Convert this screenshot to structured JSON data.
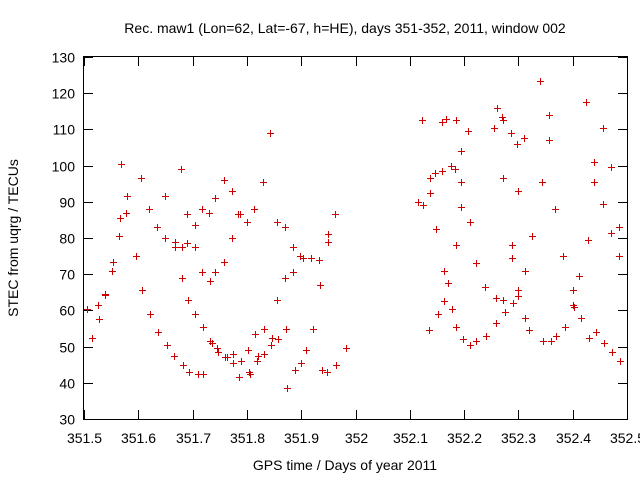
{
  "chart_data": {
    "type": "scatter",
    "title": "Rec. maw1 (Lon=62, Lat=-67, h=HE), days 351-352, 2011, window 002",
    "xlabel": "GPS time / Days of year 2011",
    "ylabel": "STEC from uqrg / TECUs",
    "xlim": [
      351.5,
      352.5
    ],
    "ylim": [
      30,
      130
    ],
    "grid": false,
    "xticks": [
      351.5,
      351.6,
      351.7,
      351.8,
      351.9,
      352.0,
      352.1,
      352.2,
      352.3,
      352.4,
      352.5
    ],
    "xtick_labels": [
      "351.5",
      "351.6",
      "351.7",
      "351.8",
      "351.9",
      "352",
      "352.1",
      "352.2",
      "352.3",
      "352.4",
      "352.5"
    ],
    "yticks": [
      30,
      40,
      50,
      60,
      70,
      80,
      90,
      100,
      110,
      120,
      130
    ],
    "ytick_labels": [
      "30",
      "40",
      "50",
      "60",
      "70",
      "80",
      "90",
      "100",
      "110",
      "120",
      "130"
    ],
    "marker": "+",
    "marker_color": "#cc0000",
    "series": [
      {
        "name": "STEC",
        "points": [
          [
            351.506,
            60.5
          ],
          [
            351.515,
            52.5
          ],
          [
            351.525,
            61.5
          ],
          [
            351.528,
            57.5
          ],
          [
            351.538,
            64.5
          ],
          [
            351.538,
            64.2
          ],
          [
            351.552,
            71
          ],
          [
            351.553,
            73.5
          ],
          [
            351.565,
            80.5
          ],
          [
            351.566,
            85.5
          ],
          [
            351.568,
            100.5
          ],
          [
            351.578,
            87
          ],
          [
            351.58,
            91.5
          ],
          [
            351.595,
            75
          ],
          [
            351.605,
            96.5
          ],
          [
            351.607,
            65.5
          ],
          [
            351.62,
            88
          ],
          [
            351.622,
            59
          ],
          [
            351.635,
            83
          ],
          [
            351.636,
            54
          ],
          [
            351.65,
            91.5
          ],
          [
            351.65,
            80
          ],
          [
            351.652,
            50.5
          ],
          [
            351.665,
            47.5
          ],
          [
            351.667,
            79
          ],
          [
            351.667,
            77.5
          ],
          [
            351.678,
            99
          ],
          [
            351.68,
            77.5
          ],
          [
            351.68,
            69
          ],
          [
            351.682,
            45
          ],
          [
            351.69,
            86.5
          ],
          [
            351.69,
            78.5
          ],
          [
            351.692,
            63
          ],
          [
            351.693,
            43
          ],
          [
            351.705,
            83.5
          ],
          [
            351.705,
            77.5
          ],
          [
            351.705,
            59
          ],
          [
            351.71,
            42.5
          ],
          [
            351.717,
            88
          ],
          [
            351.718,
            70.5
          ],
          [
            351.72,
            55.5
          ],
          [
            351.72,
            42.5
          ],
          [
            351.73,
            87
          ],
          [
            351.732,
            68
          ],
          [
            351.732,
            51.5
          ],
          [
            351.735,
            51
          ],
          [
            351.742,
            91
          ],
          [
            351.742,
            70.5
          ],
          [
            351.745,
            49.5
          ],
          [
            351.746,
            48.5
          ],
          [
            351.758,
            96
          ],
          [
            351.758,
            73.5
          ],
          [
            351.76,
            47
          ],
          [
            351.763,
            47
          ],
          [
            351.772,
            93
          ],
          [
            351.772,
            80
          ],
          [
            351.775,
            48
          ],
          [
            351.775,
            45.5
          ],
          [
            351.783,
            86.5
          ],
          [
            351.785,
            41.5
          ],
          [
            351.787,
            86.5
          ],
          [
            351.79,
            46
          ],
          [
            351.8,
            84.5
          ],
          [
            351.802,
            49
          ],
          [
            351.803,
            43
          ],
          [
            351.805,
            42.5
          ],
          [
            351.813,
            88
          ],
          [
            351.815,
            53.5
          ],
          [
            351.818,
            46
          ],
          [
            351.82,
            47.5
          ],
          [
            351.83,
            95.5
          ],
          [
            351.831,
            55
          ],
          [
            351.832,
            48
          ],
          [
            351.842,
            109
          ],
          [
            351.845,
            50.5
          ],
          [
            351.846,
            52.5
          ],
          [
            351.855,
            63
          ],
          [
            351.855,
            84.5
          ],
          [
            351.858,
            52
          ],
          [
            351.87,
            83
          ],
          [
            351.871,
            69
          ],
          [
            351.872,
            55
          ],
          [
            351.873,
            38.5
          ],
          [
            351.884,
            77.5
          ],
          [
            351.885,
            70.5
          ],
          [
            351.888,
            43.5
          ],
          [
            351.898,
            75
          ],
          [
            351.899,
            45.5
          ],
          [
            351.904,
            74.5
          ],
          [
            351.908,
            49
          ],
          [
            351.918,
            74.5
          ],
          [
            351.922,
            55
          ],
          [
            351.932,
            74
          ],
          [
            351.935,
            67
          ],
          [
            351.938,
            43.5
          ],
          [
            351.948,
            43
          ],
          [
            351.95,
            81
          ],
          [
            351.95,
            79
          ],
          [
            351.962,
            86.5
          ],
          [
            351.965,
            45
          ],
          [
            351.982,
            49.5
          ],
          [
            352.115,
            90
          ],
          [
            352.122,
            112.5
          ],
          [
            352.125,
            89
          ],
          [
            352.135,
            54.5
          ],
          [
            352.138,
            92.5
          ],
          [
            352.138,
            96.5
          ],
          [
            352.147,
            98
          ],
          [
            352.148,
            82.5
          ],
          [
            352.152,
            59
          ],
          [
            352.16,
            112
          ],
          [
            352.16,
            98.5
          ],
          [
            352.163,
            71
          ],
          [
            352.163,
            62.5
          ],
          [
            352.167,
            113
          ],
          [
            352.17,
            67.5
          ],
          [
            352.175,
            100
          ],
          [
            352.177,
            60.5
          ],
          [
            352.183,
            99
          ],
          [
            352.185,
            112.5
          ],
          [
            352.185,
            78
          ],
          [
            352.185,
            55.5
          ],
          [
            352.195,
            95.5
          ],
          [
            352.195,
            88.5
          ],
          [
            352.195,
            104
          ],
          [
            352.198,
            52
          ],
          [
            352.207,
            109.5
          ],
          [
            352.21,
            84.5
          ],
          [
            352.21,
            50.5
          ],
          [
            352.222,
            73
          ],
          [
            352.222,
            51.5
          ],
          [
            352.238,
            66.5
          ],
          [
            352.24,
            53
          ],
          [
            352.255,
            110.5
          ],
          [
            352.26,
            116
          ],
          [
            352.258,
            63.5
          ],
          [
            352.258,
            56.5
          ],
          [
            352.27,
            113.5
          ],
          [
            352.272,
            112.5
          ],
          [
            352.272,
            96.5
          ],
          [
            352.272,
            63
          ],
          [
            352.275,
            59.5
          ],
          [
            352.287,
            109
          ],
          [
            352.288,
            78
          ],
          [
            352.288,
            74.5
          ],
          [
            352.29,
            62
          ],
          [
            352.298,
            106
          ],
          [
            352.3,
            93
          ],
          [
            352.3,
            65.5
          ],
          [
            352.3,
            64
          ],
          [
            352.31,
            107.5
          ],
          [
            352.312,
            71
          ],
          [
            352.312,
            58
          ],
          [
            352.32,
            54.5
          ],
          [
            352.325,
            80.5
          ],
          [
            352.34,
            123.5
          ],
          [
            352.343,
            95.5
          ],
          [
            352.345,
            51.5
          ],
          [
            352.357,
            114
          ],
          [
            352.357,
            107
          ],
          [
            352.36,
            51.5
          ],
          [
            352.368,
            88
          ],
          [
            352.37,
            53
          ],
          [
            352.382,
            75
          ],
          [
            352.385,
            55.5
          ],
          [
            352.4,
            65.5
          ],
          [
            352.4,
            61.5
          ],
          [
            352.402,
            61
          ],
          [
            352.412,
            69.5
          ],
          [
            352.415,
            58
          ],
          [
            352.425,
            117.5
          ],
          [
            352.428,
            79.5
          ],
          [
            352.43,
            52.5
          ],
          [
            352.44,
            101
          ],
          [
            352.44,
            95.5
          ],
          [
            352.443,
            54
          ],
          [
            352.455,
            110.5
          ],
          [
            352.455,
            89.5
          ],
          [
            352.458,
            51
          ],
          [
            352.47,
            99.5
          ],
          [
            352.47,
            81.5
          ],
          [
            352.472,
            48.5
          ],
          [
            352.485,
            83
          ],
          [
            352.485,
            75
          ],
          [
            352.488,
            46
          ]
        ]
      }
    ]
  }
}
